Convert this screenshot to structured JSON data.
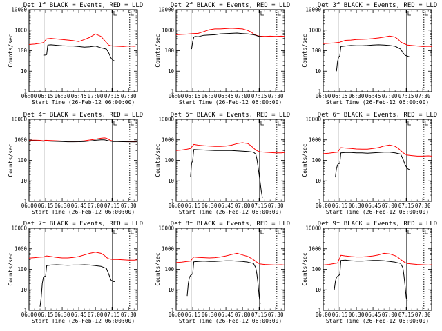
{
  "chart_data": {
    "type": "line",
    "layout": "3x3 grid",
    "grid": false,
    "y_scale": "log",
    "ylim": [
      1,
      10000
    ],
    "y_ticks": [
      "1",
      "10",
      "100",
      "1000",
      "10000"
    ],
    "ylabel": "Counts/sec",
    "xlabel": "Start Time (26-Feb-12 06:00:00)",
    "x_ticks": [
      "06:00",
      "06:15",
      "06:30",
      "06:45",
      "07:00",
      "07:15",
      "07:30"
    ],
    "xlim_minutes": [
      0,
      98
    ],
    "x_tick_minutes": [
      0,
      15,
      30,
      45,
      60,
      75,
      90
    ],
    "series_colors": {
      "Events": "#000000",
      "LLD": "#ff0000"
    },
    "panels": [
      {
        "title": "Det 1f BLACK = Events, RED = LLD",
        "events": {
          "x": [
            13,
            15,
            16,
            17,
            20,
            25,
            30,
            35,
            40,
            45,
            50,
            55,
            60,
            65,
            70,
            72,
            74,
            75,
            76,
            78
          ],
          "y": [
            60,
            62,
            64,
            190,
            195,
            185,
            175,
            170,
            170,
            160,
            150,
            155,
            170,
            140,
            120,
            80,
            45,
            38,
            34,
            30
          ]
        },
        "lld": {
          "x": [
            0,
            5,
            10,
            13,
            16,
            20,
            30,
            40,
            45,
            50,
            55,
            60,
            65,
            68,
            70,
            72,
            74,
            76,
            80,
            85,
            90,
            95,
            98
          ],
          "y": [
            200,
            210,
            230,
            250,
            380,
            400,
            350,
            310,
            280,
            350,
            450,
            650,
            500,
            330,
            250,
            190,
            175,
            170,
            165,
            160,
            170,
            165,
            175
          ]
        }
      },
      {
        "title": "Det 2f BLACK = Events, RED = LLD",
        "events": {
          "x": [
            14,
            15,
            16,
            17,
            20,
            25,
            30,
            35,
            40,
            45,
            50,
            55,
            60,
            65,
            70,
            72,
            74,
            76,
            78
          ],
          "y": [
            120,
            280,
            450,
            500,
            480,
            560,
            580,
            600,
            660,
            680,
            700,
            720,
            680,
            650,
            600,
            560,
            510,
            490,
            470
          ]
        },
        "lld": {
          "x": [
            0,
            5,
            10,
            15,
            20,
            25,
            30,
            35,
            40,
            45,
            50,
            55,
            60,
            65,
            68,
            70,
            72,
            74,
            76,
            80,
            85,
            90,
            95,
            98
          ],
          "y": [
            600,
            620,
            640,
            680,
            700,
            850,
            1050,
            1150,
            1150,
            1200,
            1250,
            1200,
            1150,
            950,
            800,
            650,
            580,
            530,
            510,
            500,
            510,
            500,
            510,
            500
          ]
        }
      },
      {
        "title": "Det 3f BLACK = Events, RED = LLD",
        "events": {
          "x": [
            12,
            13,
            14,
            15,
            16,
            20,
            25,
            30,
            35,
            40,
            45,
            50,
            55,
            60,
            65,
            70,
            72,
            74,
            76,
            78
          ],
          "y": [
            10,
            30,
            50,
            55,
            160,
            170,
            180,
            175,
            175,
            180,
            190,
            195,
            190,
            180,
            165,
            120,
            80,
            60,
            55,
            50
          ]
        },
        "lld": {
          "x": [
            0,
            5,
            10,
            15,
            20,
            25,
            30,
            35,
            40,
            45,
            50,
            55,
            60,
            65,
            68,
            70,
            72,
            74,
            76,
            80,
            85,
            90,
            95,
            98
          ],
          "y": [
            220,
            230,
            240,
            260,
            320,
            330,
            350,
            360,
            370,
            390,
            420,
            460,
            520,
            460,
            350,
            270,
            230,
            210,
            190,
            180,
            170,
            160,
            165,
            160
          ]
        }
      },
      {
        "title": "Det 4f BLACK = Events, RED = LLD",
        "events": {
          "x": [
            0,
            5,
            10,
            13,
            15,
            20,
            25,
            30,
            35,
            40,
            45,
            50,
            55,
            60,
            65,
            68,
            70,
            72,
            74,
            76,
            78,
            80,
            85,
            90,
            95,
            98
          ],
          "y": [
            900,
            900,
            880,
            850,
            880,
            860,
            840,
            820,
            800,
            800,
            810,
            830,
            870,
            950,
            1000,
            1000,
            950,
            900,
            860,
            830,
            820,
            820,
            810,
            800,
            790,
            800
          ]
        },
        "lld": {
          "x": [
            0,
            5,
            10,
            13,
            15,
            20,
            25,
            30,
            35,
            40,
            45,
            50,
            55,
            60,
            65,
            68,
            70,
            72,
            74,
            76,
            78,
            80,
            85,
            90,
            95,
            98
          ],
          "y": [
            950,
            960,
            940,
            900,
            950,
            930,
            900,
            870,
            850,
            850,
            860,
            900,
            980,
            1080,
            1200,
            1250,
            1200,
            1050,
            920,
            870,
            850,
            840,
            830,
            820,
            810,
            820
          ]
        }
      },
      {
        "title": "Det 5f BLACK = Events, RED = LLD",
        "events": {
          "x": [
            13,
            14,
            15,
            16,
            20,
            25,
            30,
            35,
            40,
            45,
            50,
            55,
            60,
            65,
            70,
            72,
            73,
            74,
            75,
            76,
            77,
            78
          ],
          "y": [
            15,
            70,
            100,
            340,
            330,
            320,
            310,
            300,
            300,
            300,
            300,
            290,
            280,
            270,
            250,
            200,
            120,
            50,
            20,
            8,
            3,
            1.5
          ]
        },
        "lld": {
          "x": [
            0,
            5,
            10,
            13,
            16,
            20,
            25,
            30,
            35,
            40,
            45,
            50,
            55,
            60,
            65,
            68,
            70,
            72,
            74,
            76,
            80,
            85,
            90,
            95,
            98
          ],
          "y": [
            300,
            320,
            350,
            380,
            600,
            550,
            520,
            500,
            480,
            480,
            500,
            550,
            650,
            720,
            650,
            500,
            400,
            320,
            280,
            260,
            250,
            240,
            230,
            230,
            240
          ]
        }
      },
      {
        "title": "Det 6f BLACK = Events, RED = LLD",
        "events": {
          "x": [
            11,
            12,
            13,
            14,
            15,
            16,
            20,
            25,
            30,
            35,
            40,
            45,
            50,
            55,
            60,
            65,
            70,
            72,
            74,
            76,
            78
          ],
          "y": [
            15,
            40,
            60,
            70,
            70,
            230,
            240,
            240,
            230,
            230,
            220,
            230,
            240,
            250,
            250,
            230,
            200,
            120,
            60,
            40,
            35
          ]
        },
        "lld": {
          "x": [
            0,
            5,
            10,
            13,
            16,
            20,
            25,
            30,
            35,
            40,
            45,
            50,
            55,
            60,
            65,
            68,
            70,
            72,
            74,
            76,
            80,
            85,
            90,
            95,
            98
          ],
          "y": [
            210,
            220,
            240,
            250,
            420,
            400,
            380,
            360,
            350,
            350,
            380,
            420,
            500,
            560,
            480,
            380,
            300,
            240,
            200,
            180,
            170,
            160,
            160,
            165,
            160
          ]
        }
      },
      {
        "title": "Det 7f BLACK = Events, RED = LLD",
        "events": {
          "x": [
            10,
            11,
            12,
            13,
            14,
            15,
            16,
            20,
            25,
            30,
            35,
            40,
            45,
            50,
            55,
            60,
            65,
            70,
            72,
            74,
            76,
            78
          ],
          "y": [
            1.5,
            4,
            20,
            40,
            45,
            45,
            150,
            160,
            165,
            160,
            155,
            160,
            160,
            165,
            160,
            150,
            140,
            110,
            60,
            30,
            25,
            25
          ]
        },
        "lld": {
          "x": [
            0,
            5,
            10,
            13,
            16,
            20,
            25,
            30,
            35,
            40,
            45,
            50,
            55,
            60,
            65,
            68,
            70,
            72,
            74,
            76,
            80,
            85,
            90,
            95,
            98
          ],
          "y": [
            350,
            370,
            390,
            400,
            450,
            420,
            380,
            360,
            360,
            380,
            420,
            500,
            600,
            680,
            600,
            480,
            380,
            330,
            310,
            300,
            300,
            290,
            280,
            280,
            290
          ]
        }
      },
      {
        "title": "Det 8f BLACK = Events, RED = LLD",
        "events": {
          "x": [
            10,
            11,
            12,
            13,
            14,
            15,
            16,
            20,
            25,
            30,
            35,
            40,
            45,
            50,
            55,
            60,
            65,
            70,
            72,
            73,
            74,
            75,
            76
          ],
          "y": [
            5,
            20,
            40,
            50,
            55,
            60,
            230,
            240,
            250,
            240,
            240,
            250,
            260,
            260,
            250,
            240,
            220,
            190,
            120,
            60,
            20,
            5,
            2
          ]
        },
        "lld": {
          "x": [
            0,
            5,
            10,
            13,
            16,
            20,
            25,
            30,
            35,
            40,
            45,
            50,
            55,
            60,
            65,
            68,
            70,
            72,
            74,
            76,
            80,
            85,
            90,
            95,
            98
          ],
          "y": [
            210,
            220,
            240,
            250,
            400,
            380,
            370,
            360,
            370,
            400,
            450,
            520,
            600,
            500,
            420,
            340,
            290,
            240,
            200,
            180,
            170,
            165,
            160,
            165,
            160
          ]
        }
      },
      {
        "title": "Det 9f BLACK = Events, RED = LLD",
        "events": {
          "x": [
            10,
            11,
            12,
            13,
            14,
            15,
            16,
            20,
            25,
            30,
            35,
            40,
            45,
            50,
            55,
            60,
            65,
            70,
            72,
            73,
            74,
            75,
            76
          ],
          "y": [
            10,
            25,
            40,
            45,
            50,
            55,
            270,
            280,
            260,
            250,
            250,
            260,
            270,
            270,
            260,
            240,
            220,
            190,
            120,
            50,
            15,
            4,
            3
          ]
        },
        "lld": {
          "x": [
            0,
            5,
            10,
            13,
            16,
            20,
            25,
            30,
            35,
            40,
            45,
            50,
            55,
            60,
            65,
            68,
            70,
            72,
            74,
            76,
            80,
            85,
            90,
            95,
            98
          ],
          "y": [
            160,
            170,
            190,
            200,
            480,
            450,
            420,
            400,
            400,
            420,
            450,
            500,
            600,
            560,
            460,
            370,
            300,
            250,
            210,
            190,
            180,
            170,
            165,
            160,
            165
          ]
        }
      }
    ]
  }
}
